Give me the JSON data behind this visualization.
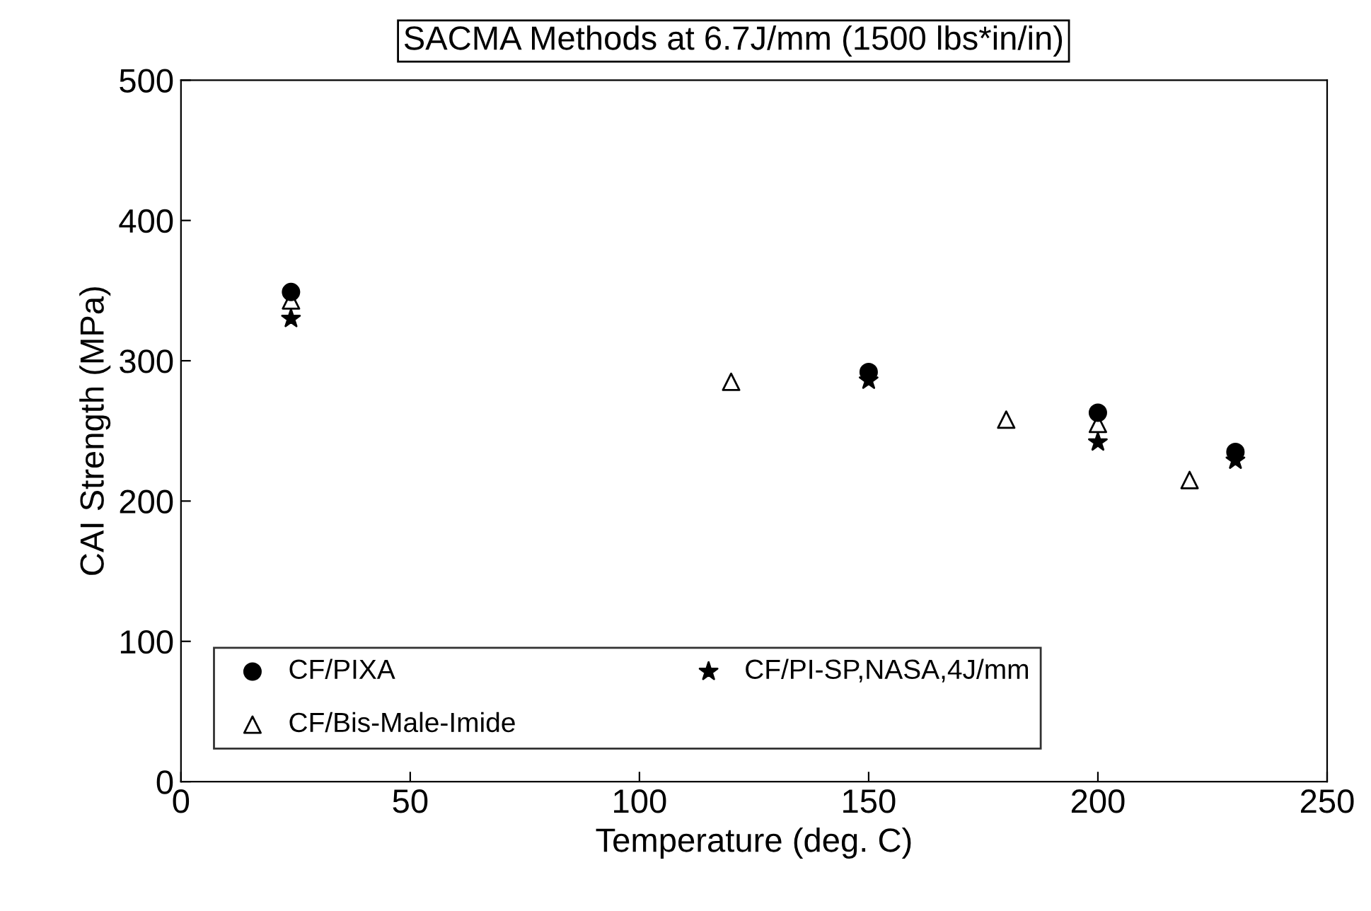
{
  "chart_data": {
    "type": "scatter",
    "title": "SACMA Methods at 6.7J/mm (1500 lbs*in/in)",
    "xlabel": "Temperature (deg. C)",
    "ylabel": "CAI Strength (MPa)",
    "xlim": [
      0,
      250
    ],
    "xticks": [
      0,
      50,
      100,
      150,
      200,
      250
    ],
    "ylim": [
      0,
      500
    ],
    "yticks": [
      0,
      100,
      200,
      300,
      400,
      500
    ],
    "grid": false,
    "legend": "bottom left",
    "series": [
      {
        "name": "CF/PIXA",
        "color": "#000000",
        "marker": "circle",
        "x": [
          24,
          150,
          200,
          230
        ],
        "values": [
          349,
          292,
          263,
          235
        ]
      },
      {
        "name": "CF/Bis-Male-Imide",
        "color": "#000000",
        "marker": "triangle",
        "x": [
          24,
          120,
          180,
          200,
          220
        ],
        "values": [
          343,
          285,
          258,
          255,
          215
        ]
      },
      {
        "name": "CF/PI-SP,NASA,4J/mm",
        "color": "#000000",
        "marker": "star",
        "x": [
          24,
          150,
          200,
          230
        ],
        "values": [
          330,
          286,
          242,
          229
        ]
      }
    ]
  }
}
